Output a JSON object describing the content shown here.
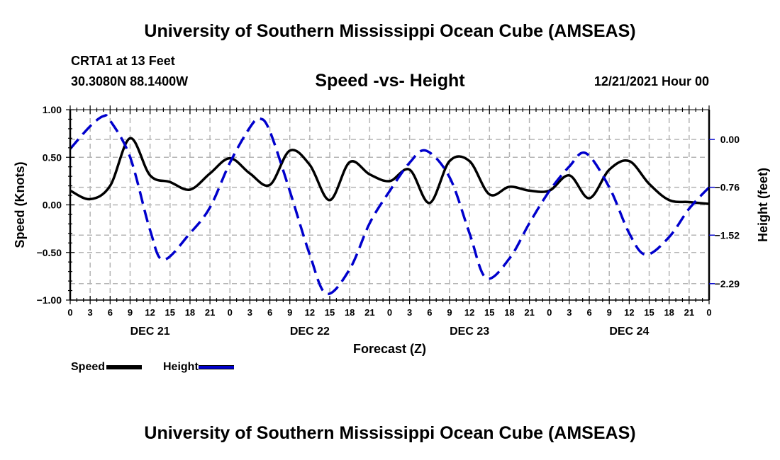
{
  "header": {
    "main_title": "University of Southern Mississippi Ocean Cube (AMSEAS)",
    "station": "CRTA1 at 13 Feet",
    "coords": "30.3080N  88.1400W",
    "subtitle": "Speed -vs- Height",
    "datetime": "12/21/2021 Hour 00"
  },
  "footer": {
    "title": "University of Southern Mississippi Ocean Cube (AMSEAS)"
  },
  "legend": {
    "speed_label": "Speed",
    "height_label": "Height"
  },
  "colors": {
    "speed": "#000000",
    "height": "#0000cc",
    "grid": "#b4b4b4"
  },
  "chart_data": {
    "type": "line",
    "title": "Speed -vs- Height",
    "xlabel": "Forecast (Z)",
    "ylabel": "Speed (Knots)",
    "y2label": "Height (feet)",
    "xlim": [
      0,
      96
    ],
    "ylim": [
      -1.0,
      1.0
    ],
    "y2_ticks": [
      0.0,
      -0.76,
      -1.52,
      -2.29
    ],
    "y2_tick_labels": [
      "0.00",
      "−0.76",
      "−1.52",
      "−2.29"
    ],
    "y_ticks": [
      1.0,
      0.5,
      0.0,
      -0.5,
      -1.0
    ],
    "y_tick_labels": [
      "1.00",
      "0.50",
      "0.00",
      "−0.50",
      "−1.00"
    ],
    "x_tick_labels": [
      "0",
      "3",
      "6",
      "9",
      "12",
      "15",
      "18",
      "21",
      "0",
      "3",
      "6",
      "9",
      "12",
      "15",
      "18",
      "21",
      "0",
      "3",
      "6",
      "9",
      "12",
      "15",
      "18",
      "21",
      "0",
      "3",
      "6",
      "9",
      "12",
      "15",
      "18",
      "21",
      "0"
    ],
    "day_labels": [
      {
        "label": "DEC 21",
        "hour": 12
      },
      {
        "label": "DEC 22",
        "hour": 36
      },
      {
        "label": "DEC 23",
        "hour": 60
      },
      {
        "label": "DEC 24",
        "hour": 84
      }
    ],
    "grid": true,
    "legend_position": "bottom-left",
    "series": [
      {
        "name": "Speed",
        "axis": "left",
        "units": "knots",
        "style": "solid",
        "x": [
          0,
          3,
          6,
          9,
          12,
          15,
          18,
          21,
          24,
          27,
          30,
          33,
          36,
          39,
          42,
          45,
          48,
          51,
          54,
          57,
          60,
          63,
          66,
          69,
          72,
          75,
          78,
          81,
          84,
          87,
          90,
          93,
          96
        ],
        "values": [
          0.15,
          0.06,
          0.2,
          0.7,
          0.31,
          0.24,
          0.16,
          0.33,
          0.49,
          0.33,
          0.21,
          0.57,
          0.42,
          0.05,
          0.45,
          0.32,
          0.25,
          0.37,
          0.02,
          0.46,
          0.46,
          0.11,
          0.19,
          0.15,
          0.15,
          0.31,
          0.07,
          0.37,
          0.46,
          0.22,
          0.05,
          0.03,
          0.01
        ]
      },
      {
        "name": "Height",
        "axis": "right",
        "units": "feet",
        "style": "dashed",
        "x": [
          0,
          3,
          5,
          6,
          9,
          12,
          14,
          18,
          21,
          24,
          27,
          28.5,
          30,
          33,
          36,
          38.5,
          42,
          45,
          48,
          51,
          53.5,
          57,
          60,
          62.5,
          66,
          69,
          72,
          75,
          77.5,
          81,
          84,
          86.5,
          90,
          93,
          96
        ],
        "values": [
          -0.15,
          0.21,
          0.37,
          0.3,
          -0.28,
          -1.44,
          -1.91,
          -1.49,
          -1.08,
          -0.37,
          0.19,
          0.33,
          0.13,
          -0.82,
          -1.83,
          -2.45,
          -2.06,
          -1.33,
          -0.82,
          -0.37,
          -0.18,
          -0.6,
          -1.49,
          -2.2,
          -1.89,
          -1.33,
          -0.82,
          -0.43,
          -0.22,
          -0.76,
          -1.49,
          -1.83,
          -1.55,
          -1.1,
          -0.76
        ]
      }
    ]
  }
}
